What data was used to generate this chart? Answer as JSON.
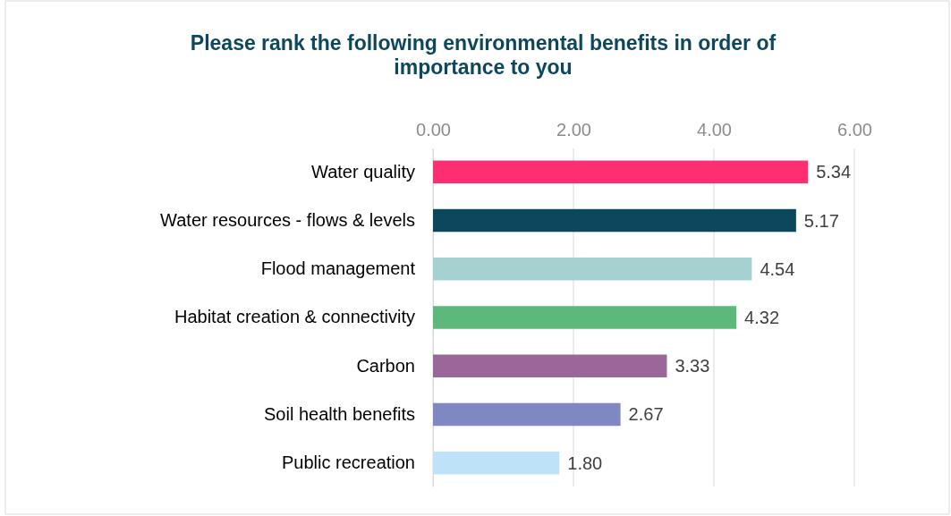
{
  "chart_data": {
    "type": "bar",
    "orientation": "horizontal",
    "title": "Please rank the following environmental benefits in order of importance to you",
    "categories": [
      "Water quality",
      "Water resources - flows & levels",
      "Flood management",
      "Habitat creation & connectivity",
      "Carbon",
      "Soil health benefits",
      "Public recreation"
    ],
    "values": [
      5.34,
      5.17,
      4.54,
      4.32,
      3.33,
      2.67,
      1.8
    ],
    "colors": [
      "#ff2e70",
      "#0c475e",
      "#a5d2d0",
      "#5cb87b",
      "#9b6699",
      "#8088c4",
      "#bee3f8"
    ],
    "value_labels": [
      "5.34",
      "5.17",
      "4.54",
      "4.32",
      "3.33",
      "2.67",
      "1.80"
    ],
    "xlim": [
      0,
      6
    ],
    "xticks": [
      {
        "value": 0,
        "label": "0.00"
      },
      {
        "value": 2,
        "label": "2.00"
      },
      {
        "value": 4,
        "label": "4.00"
      },
      {
        "value": 6,
        "label": "6.00"
      }
    ],
    "grid": "x"
  }
}
